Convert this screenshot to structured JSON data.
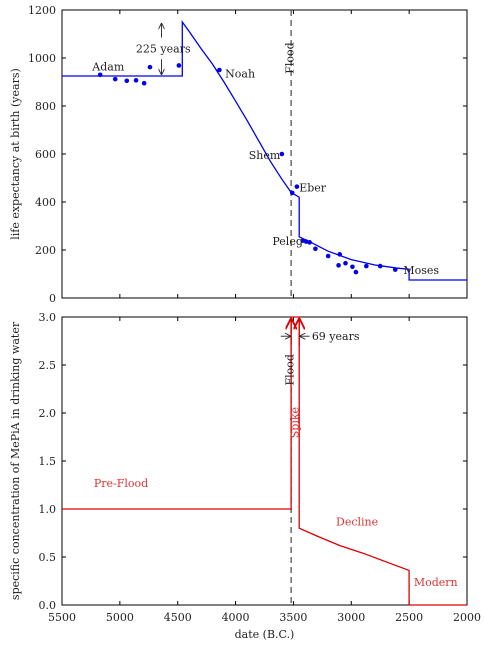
{
  "chart_data": [
    {
      "type": "line",
      "xlabel": "",
      "ylabel": "life expectancy at birth (years)",
      "xlim": [
        5500,
        2000
      ],
      "ylim": [
        0,
        1200
      ],
      "xticks": [
        5500,
        5000,
        4500,
        4000,
        3500,
        3000,
        2500,
        2000
      ],
      "yticks": [
        0,
        200,
        400,
        600,
        800,
        1000,
        1200
      ],
      "ytick_labels": [
        "0",
        "200",
        "400",
        "600",
        "800",
        "1000",
        "1200"
      ],
      "grid": false,
      "colors": {
        "line": "#0000ee",
        "points": "#0000ee",
        "flood": "#444444"
      },
      "series": [
        {
          "kind": "line",
          "points": [
            [
              5500,
              925
            ],
            [
              4460,
              925
            ],
            [
              4460,
              1150
            ],
            [
              4400,
              1110
            ],
            [
              4300,
              1040
            ],
            [
              4200,
              975
            ],
            [
              4100,
              900
            ],
            [
              4000,
              820
            ],
            [
              3900,
              740
            ],
            [
              3800,
              655
            ],
            [
              3700,
              570
            ],
            [
              3600,
              495
            ],
            [
              3520,
              440
            ],
            [
              3450,
              420
            ],
            [
              3450,
              255
            ],
            [
              3350,
              232
            ],
            [
              3200,
              195
            ],
            [
              3000,
              160
            ],
            [
              2800,
              138
            ],
            [
              2600,
              124
            ],
            [
              2500,
              120
            ],
            [
              2500,
              75
            ],
            [
              2000,
              75
            ]
          ]
        },
        {
          "kind": "scatter",
          "points": [
            [
              5170,
              930
            ],
            [
              5040,
              912
            ],
            [
              4940,
              905
            ],
            [
              4860,
              907
            ],
            [
              4790,
              895
            ],
            [
              4740,
              962
            ],
            [
              4490,
              969
            ],
            [
              4140,
              950
            ],
            [
              3600,
              600
            ],
            [
              3510,
              438
            ],
            [
              3470,
              464
            ],
            [
              3420,
              239
            ],
            [
              3390,
              235
            ],
            [
              3360,
              232
            ],
            [
              3310,
              205
            ],
            [
              3200,
              175
            ],
            [
              3110,
              136
            ],
            [
              3100,
              182
            ],
            [
              3050,
              145
            ],
            [
              2990,
              130
            ],
            [
              2960,
              108
            ],
            [
              2870,
              133
            ],
            [
              2750,
              133
            ],
            [
              2620,
              118
            ]
          ]
        }
      ],
      "labels": {
        "adam": {
          "text": "Adam",
          "x": 5100,
          "y": 965
        },
        "noah": {
          "text": "Noah",
          "x": 4090,
          "y": 935
        },
        "shem": {
          "text": "Shem",
          "x": 3750,
          "y": 595
        },
        "eber": {
          "text": "Eber",
          "x": 3450,
          "y": 460
        },
        "peleg": {
          "text": "Peleg",
          "x": 3550,
          "y": 238
        },
        "moses": {
          "text": "Moses",
          "x": 2550,
          "y": 117
        },
        "gap": {
          "text": "225 years",
          "x": 4625,
          "y": 1040
        },
        "flood": {
          "text": "Flood",
          "x": 3500,
          "y": 1000
        }
      },
      "annotations": {
        "gap_arrow": {
          "x": 4640,
          "y_top": 1150,
          "y_bottom": 925
        },
        "flood_line_x": 3520
      }
    },
    {
      "type": "line",
      "xlabel": "date (B.C.)",
      "ylabel": "specific concentration of MePiA in drinking water",
      "xlim": [
        5500,
        2000
      ],
      "ylim": [
        0,
        3
      ],
      "xticks": [
        5500,
        5000,
        4500,
        4000,
        3500,
        3000,
        2500,
        2000
      ],
      "xtick_labels": [
        "5500",
        "5000",
        "4500",
        "4000",
        "3500",
        "3000",
        "2500",
        "2000"
      ],
      "yticks": [
        0,
        0.5,
        1,
        1.5,
        2,
        2.5,
        3
      ],
      "ytick_labels": [
        "0.0",
        "0.5",
        "1.0",
        "1.5",
        "2.0",
        "2.5",
        "3.0"
      ],
      "grid": false,
      "colors": {
        "line": "#dd0000",
        "text": "#dd3333",
        "flood": "#444444",
        "annotation": "#222222"
      },
      "series": [
        {
          "kind": "line",
          "points": [
            [
              5500,
              1.0
            ],
            [
              3520,
              1.0
            ],
            [
              3520,
              3.0
            ],
            [
              3450,
              3.0
            ],
            [
              3450,
              0.8
            ],
            [
              3300,
              0.72
            ],
            [
              3100,
              0.62
            ],
            [
              2900,
              0.54
            ],
            [
              2700,
              0.45
            ],
            [
              2500,
              0.36
            ],
            [
              2500,
              0.0
            ],
            [
              2000,
              0.0
            ]
          ]
        }
      ],
      "labels": {
        "pre_flood": {
          "text": "Pre-Flood",
          "x": 4990,
          "y": 1.27
        },
        "spike": {
          "text": "Spike",
          "x": 3455,
          "y": 1.9
        },
        "decline": {
          "text": "Decline",
          "x": 2950,
          "y": 0.87
        },
        "modern": {
          "text": "Modern",
          "x": 2270,
          "y": 0.24
        },
        "gap": {
          "text": "69 years",
          "x": 3135,
          "y": 2.8
        },
        "flood": {
          "text": "Flood",
          "x": 3500,
          "y": 2.45
        }
      },
      "annotations": {
        "gap_arrows_y": 2.8,
        "gap_from": 3520,
        "gap_to": 3450,
        "flood_line_x": 3520
      }
    }
  ]
}
